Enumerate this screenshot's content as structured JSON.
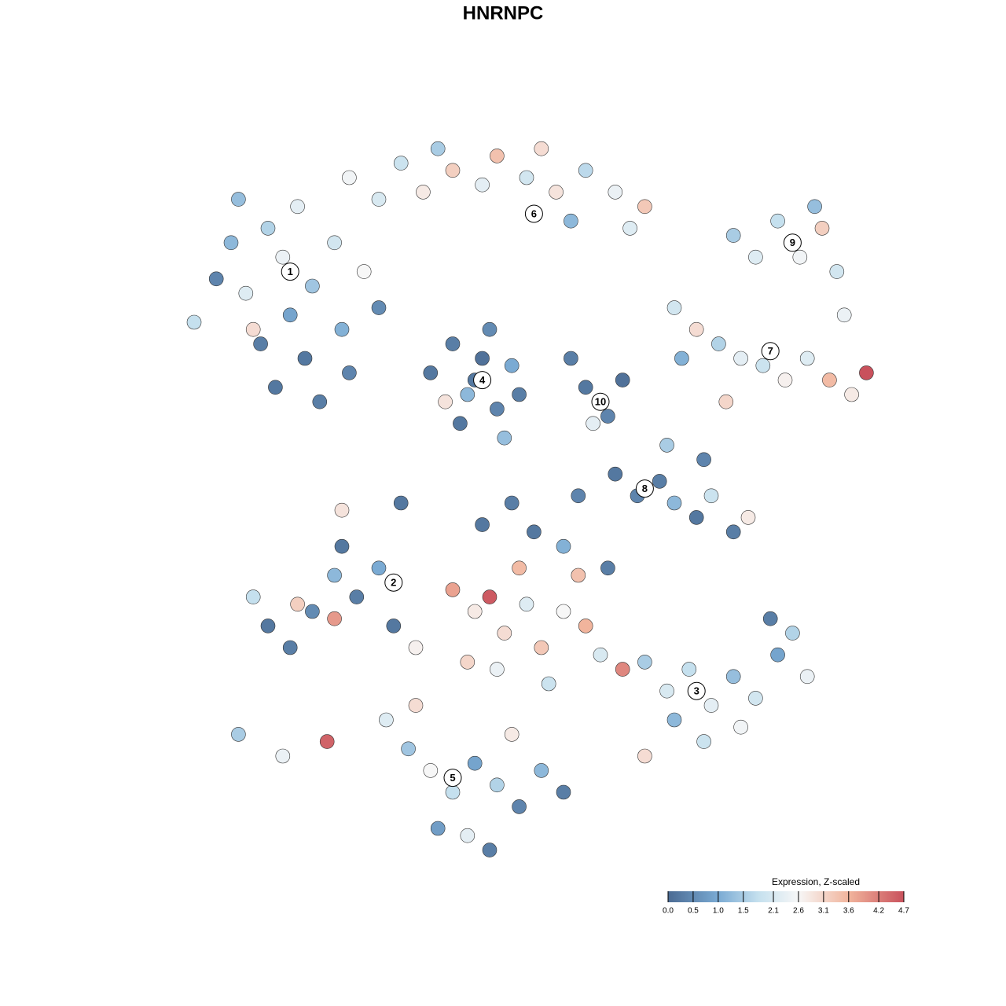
{
  "chart_data": {
    "type": "scatter",
    "title": "HNRNPC",
    "xlim": [
      0,
      100
    ],
    "ylim": [
      0,
      100
    ],
    "x": [
      5,
      8,
      10,
      12,
      14,
      15,
      17,
      18,
      20,
      21,
      22,
      24,
      25,
      26,
      28,
      30,
      16,
      11,
      19,
      13,
      26,
      30,
      33,
      36,
      40,
      44,
      46,
      50,
      54,
      58,
      62,
      66,
      38,
      52,
      56,
      64,
      37,
      40,
      42,
      44,
      46,
      48,
      41,
      45,
      49,
      39,
      43,
      47,
      58,
      61,
      63,
      59,
      56,
      78,
      81,
      84,
      87,
      90,
      92,
      89,
      93,
      70,
      73,
      76,
      79,
      82,
      85,
      88,
      91,
      96,
      94,
      77,
      71,
      62,
      65,
      68,
      70,
      73,
      75,
      78,
      74,
      69,
      80,
      15,
      18,
      21,
      24,
      27,
      30,
      19,
      24,
      13,
      32,
      11,
      17,
      23,
      25,
      40,
      43,
      45,
      47,
      50,
      52,
      55,
      58,
      60,
      42,
      46,
      53,
      63,
      49,
      57,
      51,
      48,
      44,
      57,
      61,
      55,
      35,
      66,
      69,
      72,
      75,
      78,
      81,
      84,
      86,
      88,
      74,
      79,
      70,
      66,
      83,
      31,
      34,
      37,
      40,
      43,
      46,
      49,
      52,
      38,
      42,
      45,
      35,
      55,
      48,
      25,
      33
    ],
    "y": [
      75,
      81,
      86,
      79,
      72,
      88,
      84,
      76,
      70,
      80,
      64,
      86,
      74,
      68,
      82,
      77,
      66,
      92,
      91,
      74,
      95,
      92,
      97,
      93,
      96,
      94,
      98,
      95,
      93,
      96,
      93,
      91,
      99,
      99,
      89,
      88,
      68,
      72,
      65,
      70,
      63,
      69,
      61,
      74,
      65,
      64,
      67,
      59,
      66,
      62,
      67,
      61,
      70,
      87,
      84,
      89,
      84,
      88,
      82,
      91,
      76,
      77,
      74,
      72,
      70,
      69,
      67,
      70,
      67,
      68,
      65,
      64,
      70,
      54,
      51,
      53,
      50,
      48,
      51,
      46,
      56,
      58,
      48,
      33,
      30,
      35,
      40,
      37,
      41,
      36,
      34,
      37,
      33,
      18,
      15,
      17,
      44,
      38,
      35,
      37,
      32,
      36,
      30,
      35,
      33,
      29,
      28,
      27,
      25,
      27,
      41,
      40,
      46,
      50,
      47,
      51,
      41,
      44,
      30,
      28,
      24,
      27,
      22,
      26,
      23,
      29,
      32,
      26,
      17,
      19,
      20,
      15,
      34,
      20,
      16,
      13,
      10,
      14,
      11,
      8,
      13,
      5,
      4,
      2,
      22,
      10,
      18,
      49,
      50
    ],
    "values": [
      1.8,
      0.4,
      1.2,
      2.2,
      0.3,
      1.6,
      2.4,
      0.9,
      0.2,
      1.4,
      0.3,
      2.0,
      1.1,
      0.4,
      2.6,
      0.5,
      0.2,
      1.3,
      2.3,
      3.0,
      2.5,
      2.1,
      1.9,
      2.8,
      3.2,
      2.3,
      3.4,
      2.0,
      2.9,
      1.7,
      2.4,
      3.3,
      1.5,
      3.0,
      1.2,
      2.2,
      0.2,
      0.3,
      1.2,
      0.1,
      0.4,
      1.0,
      0.2,
      0.5,
      0.3,
      2.9,
      0.2,
      1.3,
      0.2,
      0.4,
      0.1,
      2.3,
      0.3,
      1.5,
      2.2,
      1.8,
      2.5,
      3.2,
      2.0,
      1.3,
      2.4,
      2.0,
      3.0,
      1.6,
      2.3,
      1.9,
      2.7,
      2.2,
      3.5,
      4.7,
      2.8,
      3.1,
      1.1,
      0.2,
      0.4,
      0.3,
      1.2,
      0.2,
      1.9,
      0.3,
      0.4,
      1.5,
      2.8,
      0.2,
      0.3,
      0.5,
      1.2,
      0.3,
      1.0,
      3.2,
      3.9,
      1.8,
      0.2,
      1.5,
      2.4,
      4.5,
      0.2,
      3.8,
      2.8,
      4.6,
      3.0,
      2.2,
      3.3,
      2.6,
      3.6,
      2.1,
      3.1,
      2.4,
      1.9,
      4.1,
      3.5,
      3.4,
      0.2,
      0.3,
      0.2,
      0.4,
      0.3,
      1.1,
      2.7,
      1.5,
      2.1,
      1.8,
      2.3,
      1.3,
      2.0,
      0.9,
      1.6,
      2.4,
      1.9,
      2.5,
      1.2,
      3.0,
      0.3,
      2.2,
      1.4,
      2.6,
      1.8,
      0.9,
      1.6,
      0.4,
      1.2,
      0.8,
      2.3,
      0.3,
      3.0,
      0.3,
      2.8,
      2.9,
      0.2
    ],
    "clusters": [
      {
        "label": "1",
        "x": 18,
        "y": 82
      },
      {
        "label": "6",
        "x": 51,
        "y": 90
      },
      {
        "label": "9",
        "x": 86,
        "y": 86
      },
      {
        "label": "4",
        "x": 44,
        "y": 67
      },
      {
        "label": "7",
        "x": 83,
        "y": 71
      },
      {
        "label": "10",
        "x": 60,
        "y": 64
      },
      {
        "label": "8",
        "x": 66,
        "y": 52
      },
      {
        "label": "2",
        "x": 32,
        "y": 39
      },
      {
        "label": "3",
        "x": 73,
        "y": 24
      },
      {
        "label": "5",
        "x": 40,
        "y": 12
      }
    ],
    "colorbar_title": "Expression, Z-scaled",
    "clim": [
      0,
      4.7
    ],
    "colorbar_ticks": [
      {
        "value": 0,
        "label": "0.0"
      },
      0.5,
      {
        "value": 1,
        "label": "1.0"
      },
      1.5,
      2.1,
      2.6,
      3.1,
      3.6,
      4.2,
      4.7
    ],
    "colorscale": [
      [
        0,
        "#4b6b93"
      ],
      [
        1,
        "#7aaad3"
      ],
      [
        1.8,
        "#c5e0ee"
      ],
      [
        2.6,
        "#f7f7f7"
      ],
      [
        3.6,
        "#f1b49c"
      ],
      [
        4.7,
        "#c9515c"
      ]
    ]
  }
}
